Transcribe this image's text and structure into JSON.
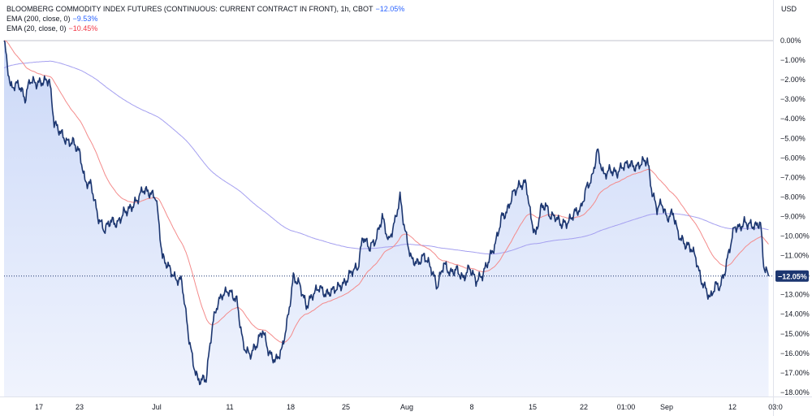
{
  "legend": {
    "title": "BLOOMBERG COMMODITY INDEX FUTURES (CONTINUOUS: CURRENT CONTRACT IN FRONT), 1h, CBOT",
    "title_value": "−12.05%",
    "ema200_label": "EMA (200, close, 0)",
    "ema200_value": "−9.53%",
    "ema20_label": "EMA (20, close, 0)",
    "ema20_value": "−10.45%"
  },
  "axis": {
    "unit": "USD"
  },
  "colors": {
    "price": "#1c3670",
    "fill": "#dce6fb",
    "ema200": "#a5a0f0",
    "ema20": "#f48b8b",
    "badge": "#1c3670"
  },
  "chart_data": {
    "type": "area",
    "title": "BLOOMBERG COMMODITY INDEX FUTURES (CONTINUOUS: CURRENT CONTRACT IN FRONT), 1h, CBOT",
    "ylabel": "USD",
    "ylim": [
      -18.5,
      1.8
    ],
    "y_ticks": [
      "0.00%",
      "−1.00%",
      "−2.00%",
      "−3.00%",
      "−4.00%",
      "−5.00%",
      "−6.00%",
      "−7.00%",
      "−8.00%",
      "−9.00%",
      "−10.00%",
      "−11.00%",
      "−12.00%",
      "−13.00%",
      "−14.00%",
      "−15.00%",
      "−16.00%",
      "−17.00%",
      "−18.00%"
    ],
    "x_ticks": [
      "17",
      "23",
      "Jul",
      "11",
      "18",
      "25",
      "Aug",
      "8",
      "15",
      "22",
      "01:00",
      "Sep",
      "12",
      "03:0"
    ],
    "last_value_label": "−12.05%",
    "x": [
      0,
      1,
      2,
      3,
      4,
      5,
      6,
      7,
      8,
      9,
      10,
      11,
      12,
      13,
      14,
      15,
      16,
      17,
      18,
      19,
      20,
      21,
      22,
      23,
      24,
      25,
      26,
      27,
      28,
      29,
      30,
      31,
      32,
      33,
      34,
      35,
      36,
      37,
      38,
      39,
      40,
      41,
      42,
      43,
      44,
      45,
      46,
      47,
      48,
      49,
      50,
      51,
      52,
      53,
      54,
      55,
      56,
      57,
      58,
      59,
      60,
      61,
      62,
      63,
      64,
      65,
      66,
      67,
      68,
      69,
      70,
      71,
      72,
      73,
      74,
      75,
      76,
      77,
      78,
      79,
      80,
      81,
      82,
      83,
      84,
      85,
      86,
      87,
      88,
      89,
      90,
      91,
      92,
      93,
      94,
      95,
      96,
      97,
      98,
      99,
      100,
      101,
      102,
      103,
      104,
      105,
      106,
      107,
      108,
      109,
      110,
      111,
      112,
      113,
      114,
      115,
      116,
      117,
      118,
      119,
      120,
      121,
      122,
      123,
      124,
      125,
      126,
      127,
      128,
      129,
      130,
      131,
      132,
      133,
      134,
      135,
      136,
      137,
      138,
      139,
      140,
      141,
      142,
      143,
      144,
      145,
      146,
      147,
      148,
      149,
      150,
      151,
      152,
      153,
      154,
      155,
      156,
      157,
      158,
      159,
      160,
      161,
      162,
      163,
      164,
      165,
      166,
      167,
      168,
      169,
      170,
      171,
      172,
      173,
      174,
      175,
      176,
      177,
      178,
      179,
      180,
      181,
      182,
      183,
      184,
      185,
      186,
      187,
      188,
      189,
      190,
      191,
      192,
      193,
      194,
      195,
      196,
      197,
      198,
      199,
      200,
      201,
      202,
      203,
      204,
      205,
      206,
      207,
      208,
      209,
      210,
      211,
      212,
      213,
      214,
      215,
      216,
      217,
      218,
      219,
      220,
      221,
      222,
      223,
      224,
      225,
      226,
      227,
      228,
      229,
      230,
      231,
      232,
      233,
      234,
      235,
      236,
      237,
      238,
      239,
      240,
      241,
      242,
      243,
      244,
      245,
      246,
      247,
      248,
      249,
      250,
      251,
      252,
      253,
      254,
      255,
      256,
      257,
      258,
      259,
      260,
      261,
      262,
      263,
      264,
      265,
      266,
      267,
      268,
      269,
      270,
      271,
      272,
      273,
      274,
      275,
      276,
      277,
      278,
      279,
      280,
      281,
      282,
      283,
      284,
      285,
      286,
      287,
      288,
      289,
      290,
      291,
      292,
      293,
      294,
      295,
      296,
      297,
      298,
      299,
      300,
      301,
      302,
      303,
      304,
      305,
      306,
      307,
      308,
      309,
      310,
      311,
      312,
      313,
      314,
      315,
      316,
      317,
      318,
      319,
      320,
      321,
      322,
      323,
      324,
      325,
      326,
      327,
      328,
      329,
      330,
      331,
      332,
      333,
      334,
      335,
      336,
      337,
      338,
      339,
      340,
      341,
      342,
      343,
      344,
      345,
      346,
      347,
      348,
      349,
      350,
      351,
      352,
      353,
      354,
      355,
      356,
      357,
      358,
      359,
      360,
      361,
      362,
      363,
      364,
      365,
      366,
      367,
      368,
      369,
      370,
      371,
      372,
      373,
      374,
      375,
      376,
      377,
      378,
      379,
      380,
      381,
      382,
      383,
      384,
      385,
      386,
      387,
      388,
      389,
      390,
      391,
      392,
      393,
      394,
      395,
      396,
      397,
      398,
      399,
      400,
      401,
      402,
      403,
      404,
      405,
      406,
      407,
      408,
      409,
      410,
      411,
      412,
      413,
      414,
      415,
      416,
      417,
      418,
      419,
      420,
      421,
      422,
      423,
      424,
      425,
      426,
      427,
      428,
      429,
      430,
      431,
      432,
      433,
      434,
      435,
      436,
      437,
      438,
      439,
      440,
      441,
      442,
      443,
      444,
      445,
      446,
      447,
      448,
      449,
      450,
      451,
      452,
      453,
      454,
      455,
      456,
      457,
      458,
      459,
      460,
      461,
      462,
      463,
      464,
      465,
      466,
      467,
      468,
      469,
      470,
      471,
      472,
      473,
      474,
      475,
      476,
      477,
      478,
      479,
      480,
      481,
      482,
      483,
      484,
      485,
      486,
      487,
      488,
      489,
      490,
      491,
      492,
      493,
      494,
      495,
      496,
      497,
      498,
      499,
      500,
      501,
      502,
      503,
      504,
      505,
      506,
      507,
      508,
      509,
      510,
      511,
      512,
      513,
      514,
      515,
      516,
      517,
      518,
      519,
      520,
      521,
      522,
      523,
      524,
      525,
      526,
      527,
      528,
      529,
      530,
      531,
      532,
      533,
      534,
      535,
      536,
      537,
      538,
      539,
      540,
      541,
      542,
      543,
      544,
      545,
      546,
      547,
      548,
      549,
      550,
      551,
      552,
      553,
      554,
      555,
      556,
      557,
      558,
      559,
      560,
      561,
      562,
      563,
      564,
      565,
      566,
      567,
      568,
      569,
      570,
      571,
      572,
      573,
      574,
      575,
      576,
      577,
      578,
      579,
      580,
      581,
      582,
      583,
      584,
      585,
      586,
      587,
      588,
      589,
      590,
      591,
      592,
      593,
      594,
      595,
      596,
      597,
      598,
      599,
      600,
      601,
      602,
      603,
      604,
      605,
      606,
      607,
      608,
      609,
      610,
      611,
      612,
      613,
      614,
      615,
      616,
      617,
      618,
      619,
      620,
      621,
      622,
      623,
      624,
      625,
      626,
      627,
      628,
      629,
      630,
      631,
      632,
      633,
      634,
      635,
      636,
      637,
      638,
      639,
      640,
      641,
      642,
      643,
      644,
      645,
      646,
      647,
      648,
      649,
      650,
      651,
      652,
      653,
      654,
      655,
      656,
      657,
      658,
      659,
      660,
      661,
      662,
      663,
      664,
      665,
      666,
      667,
      668,
      669,
      670,
      671,
      672,
      673,
      674,
      675,
      676,
      677,
      678,
      679,
      680,
      681,
      682,
      683,
      684,
      685,
      686,
      687,
      688,
      689,
      690,
      691,
      692,
      693,
      694,
      695,
      696,
      697,
      698,
      699,
      700,
      701,
      702,
      703,
      704,
      705,
      706,
      707,
      708,
      709,
      710,
      711,
      712,
      713,
      714,
      715,
      716,
      717,
      718,
      719,
      720,
      721,
      722,
      723,
      724,
      725,
      726,
      727,
      728,
      729,
      730,
      731,
      732,
      733,
      734,
      735,
      736,
      737,
      738,
      739,
      740,
      741,
      742,
      743,
      744,
      745,
      746,
      747,
      748,
      749,
      750,
      751,
      752,
      753,
      754,
      755,
      756,
      757,
      758,
      759,
      760,
      761,
      762,
      763,
      764,
      765,
      766,
      767,
      768,
      769,
      770,
      771,
      772,
      773,
      774,
      775,
      776,
      777,
      778,
      779,
      780,
      781,
      782,
      783,
      784,
      785,
      786,
      787,
      788,
      789,
      790,
      791,
      792,
      793,
      794,
      795,
      796,
      797,
      798,
      799,
      800,
      801,
      802,
      803,
      804,
      805,
      806,
      807,
      808,
      809,
      810,
      811,
      812,
      813,
      814,
      815,
      816,
      817,
      818,
      819,
      820,
      821,
      822,
      823,
      824,
      825,
      826,
      827,
      828,
      829,
      830,
      831,
      832,
      833,
      834,
      835,
      836,
      837,
      838,
      839,
      840,
      841,
      842,
      843,
      844,
      845,
      846,
      847,
      848,
      849,
      850,
      851,
      852,
      853,
      854,
      855,
      856,
      857,
      858,
      859,
      860,
      861,
      862,
      863,
      864,
      865,
      866,
      867,
      868,
      869,
      870,
      871,
      872,
      873,
      874,
      875,
      876,
      877,
      878,
      879,
      880,
      881,
      882,
      883,
      884,
      885,
      886,
      887,
      888,
      889,
      890,
      891,
      892,
      893,
      894,
      895,
      896,
      897,
      898,
      899,
      900,
      901,
      902,
      903,
      904,
      905,
      906,
      907,
      908,
      909,
      910,
      911,
      912,
      913,
      914,
      915,
      916,
      917,
      918,
      919,
      920,
      921,
      922,
      923,
      924,
      925,
      926,
      927,
      928,
      929,
      930,
      931,
      932,
      933,
      934,
      935,
      936,
      937,
      938,
      939,
      940
    ],
    "series": []
  }
}
